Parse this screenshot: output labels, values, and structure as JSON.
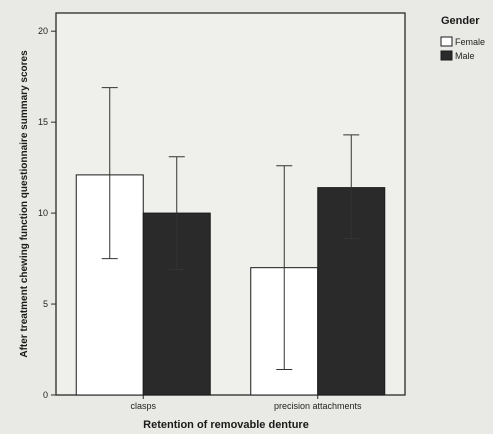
{
  "chart_data": {
    "type": "bar",
    "title": "",
    "xlabel": "Retention of removable denture",
    "ylabel": "After treatment chewing function questionnaire summary scores",
    "categories": [
      "clasps",
      "precision attachments"
    ],
    "series": [
      {
        "name": "Female",
        "color": "#ffffff",
        "values": [
          12.1,
          7.0
        ],
        "error_low": [
          7.5,
          1.4
        ],
        "error_high": [
          16.9,
          12.6
        ]
      },
      {
        "name": "Male",
        "color": "#2a2a2a",
        "values": [
          10.0,
          11.4
        ],
        "error_low": [
          6.9,
          8.6
        ],
        "error_high": [
          13.1,
          14.3
        ]
      }
    ],
    "ylim": [
      0,
      21
    ],
    "yticks": [
      0,
      5,
      10,
      15,
      20
    ],
    "grid": false,
    "legend": {
      "title": "Gender",
      "placement": "top-right"
    }
  }
}
